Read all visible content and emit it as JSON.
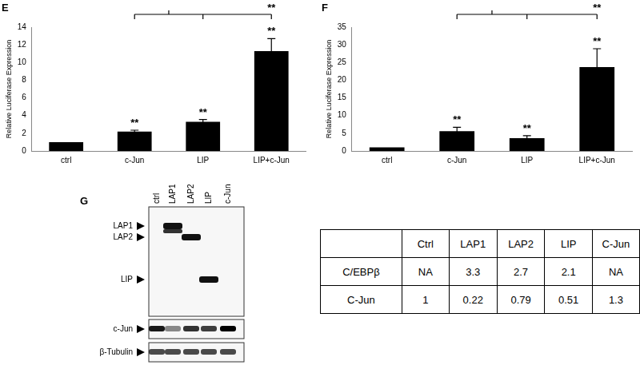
{
  "chart_data": [
    {
      "type": "bar",
      "title": "E",
      "y_label": "Relative Luciferase Expression",
      "categories": [
        "ctrl",
        "c-Jun",
        "LIP",
        "LIP+c-Jun"
      ],
      "values": [
        1,
        2.2,
        3.3,
        11.3
      ],
      "error": [
        0,
        0.15,
        0.25,
        1.4
      ],
      "color": "#000000",
      "ylim": [
        0,
        14
      ],
      "yticks": [
        0,
        2,
        4,
        6,
        8,
        10,
        12,
        14
      ],
      "grid": false,
      "annotations": [
        {
          "category": "c-Jun",
          "text": "**"
        },
        {
          "category": "LIP",
          "text": "**"
        },
        {
          "category": "LIP+c-Jun",
          "text": "**"
        }
      ],
      "bracket": {
        "from": [
          "c-Jun",
          "LIP"
        ],
        "to": "LIP+c-Jun",
        "text": "**"
      }
    },
    {
      "type": "bar",
      "title": "F",
      "y_label": "Relative Luciferase Expression",
      "categories": [
        "ctrl",
        "c-Jun",
        "LIP",
        "LIP+c-Jun"
      ],
      "values": [
        1,
        5.6,
        3.6,
        23.7
      ],
      "error": [
        0,
        1.1,
        0.7,
        5.2
      ],
      "color": "#000000",
      "ylim": [
        0,
        35
      ],
      "yticks": [
        0,
        5,
        10,
        15,
        20,
        25,
        30,
        35
      ],
      "grid": false,
      "annotations": [
        {
          "category": "c-Jun",
          "text": "**"
        },
        {
          "category": "LIP",
          "text": "**"
        },
        {
          "category": "LIP+c-Jun",
          "text": "**"
        }
      ],
      "bracket": {
        "from": [
          "c-Jun",
          "LIP"
        ],
        "to": "LIP+c-Jun",
        "text": "**"
      }
    }
  ],
  "blot": {
    "panel": "G",
    "lanes": [
      "ctrl",
      "LAP1",
      "LAP2",
      "LIP",
      "c-Jun"
    ],
    "bands": [
      "LAP1",
      "LAP2",
      "LIP"
    ],
    "strips": [
      "c-Jun",
      "β-Tubulin"
    ]
  },
  "table": {
    "columns": [
      "Ctrl",
      "LAP1",
      "LAP2",
      "LIP",
      "C-Jun"
    ],
    "rows": [
      {
        "label": "C/EBPβ",
        "cells": [
          "NA",
          3.3,
          2.7,
          2.1,
          "NA"
        ]
      },
      {
        "label": "C-Jun",
        "cells": [
          1,
          0.22,
          0.79,
          0.51,
          1.3
        ]
      }
    ]
  }
}
